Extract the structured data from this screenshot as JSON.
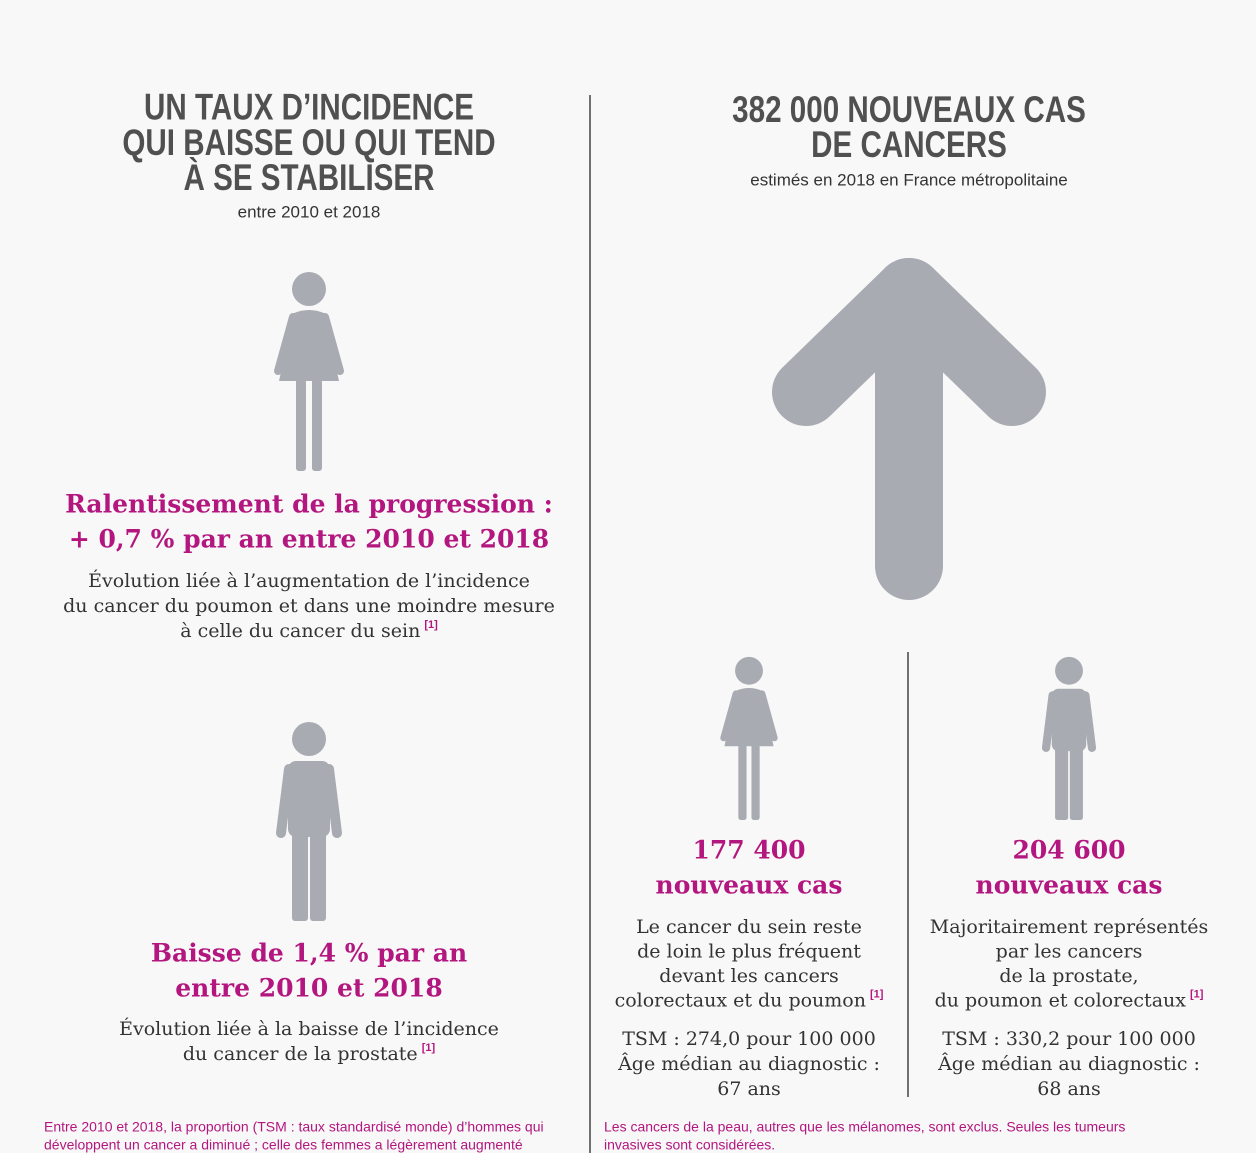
{
  "left": {
    "title": [
      "UN TAUX D’INCIDENCE",
      "QUI BAISSE OU QUI TEND",
      "À SE STABILISER"
    ],
    "subtitle": "entre 2010 et 2018",
    "women": {
      "headline": [
        "Ralentissement de la progression :",
        "+ 0,7 % par an entre 2010 et 2018"
      ],
      "description": [
        "Évolution liée à l’augmentation de l’incidence",
        "du cancer du poumon et dans une moindre mesure",
        "à celle du cancer du sein"
      ],
      "note": "[1]"
    },
    "men": {
      "headline": [
        "Baisse de 1,4 % par an",
        "entre 2010 et 2018"
      ],
      "description": [
        "Évolution liée à la baisse de l’incidence",
        "du cancer de la prostate"
      ],
      "note": "[1]"
    },
    "footnote": [
      "Entre 2010 et 2018, la proportion (TSM : taux standardisé monde) d’hommes qui",
      "développent un cancer a diminué ; celle des femmes a légèrement augmenté"
    ]
  },
  "right": {
    "title": [
      "382 000 NOUVEAUX CAS",
      "DE CANCERS"
    ],
    "subtitle": "estimés en 2018 en France métropolitaine",
    "women": {
      "count": "177 400",
      "unit": "nouveaux cas",
      "description": [
        "Le cancer du sein reste",
        "de loin le plus fréquent",
        "devant les cancers",
        "colorectaux et du poumon"
      ],
      "note": "[1]",
      "tsm": "TSM : 274,0 pour 100 000",
      "age": [
        "Âge médian au diagnostic :",
        "67 ans"
      ]
    },
    "men": {
      "count": "204 600",
      "unit": "nouveaux cas",
      "description": [
        "Majoritairement représentés",
        "par les cancers",
        "de la prostate,",
        "du poumon et colorectaux"
      ],
      "note": "[1]",
      "tsm": "TSM : 330,2 pour 100 000",
      "age": [
        "Âge médian au diagnostic :",
        "68 ans"
      ]
    },
    "footnote": [
      "Les cancers de la peau, autres que les mélanomes, sont exclus. Seules les tumeurs",
      "invasives sont considérées."
    ]
  }
}
